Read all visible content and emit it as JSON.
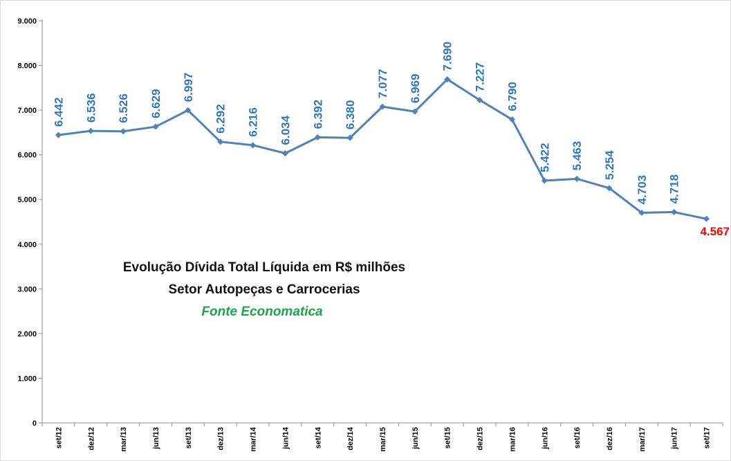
{
  "chart_data": {
    "type": "line",
    "title": "Evolução Dívida Total Líquida em R$ milhões",
    "subtitle": "Setor Autopeças e Carrocerias",
    "source": "Fonte Economatica",
    "xlabel": "",
    "ylabel": "",
    "categories": [
      "set/12",
      "dez/12",
      "mar/13",
      "jun/13",
      "set/13",
      "dez/13",
      "mar/14",
      "jun/14",
      "set/14",
      "dez/14",
      "mar/15",
      "jun/15",
      "set/15",
      "dez/15",
      "mar/16",
      "jun/16",
      "set/16",
      "dez/16",
      "mar/17",
      "jun/17",
      "set/17"
    ],
    "values": [
      6442,
      6536,
      6526,
      6629,
      6997,
      6292,
      6216,
      6034,
      6392,
      6380,
      7077,
      6969,
      7690,
      7227,
      6790,
      5422,
      5463,
      5254,
      4703,
      4718,
      4567
    ],
    "value_labels": [
      "6.442",
      "6.536",
      "6.526",
      "6.629",
      "6.997",
      "6.292",
      "6.216",
      "6.034",
      "6.392",
      "6.380",
      "7.077",
      "6.969",
      "7.690",
      "7.227",
      "6.790",
      "5.422",
      "5.463",
      "5.254",
      "4.703",
      "4.718",
      "4.567"
    ],
    "y_ticks": [
      0,
      1000,
      2000,
      3000,
      4000,
      5000,
      6000,
      7000,
      8000,
      9000
    ],
    "y_tick_labels": [
      "0",
      "1.000",
      "2.000",
      "3.000",
      "4.000",
      "5.000",
      "6.000",
      "7.000",
      "8.000",
      "9.000"
    ],
    "ylim": [
      0,
      9000
    ],
    "grid": false,
    "legend": "none",
    "colors": {
      "line": "#4f81bd",
      "label": "#2e75c4",
      "last_label": "#ff0000",
      "source": "#1aa64a",
      "axis": "#8c8c8c"
    }
  }
}
